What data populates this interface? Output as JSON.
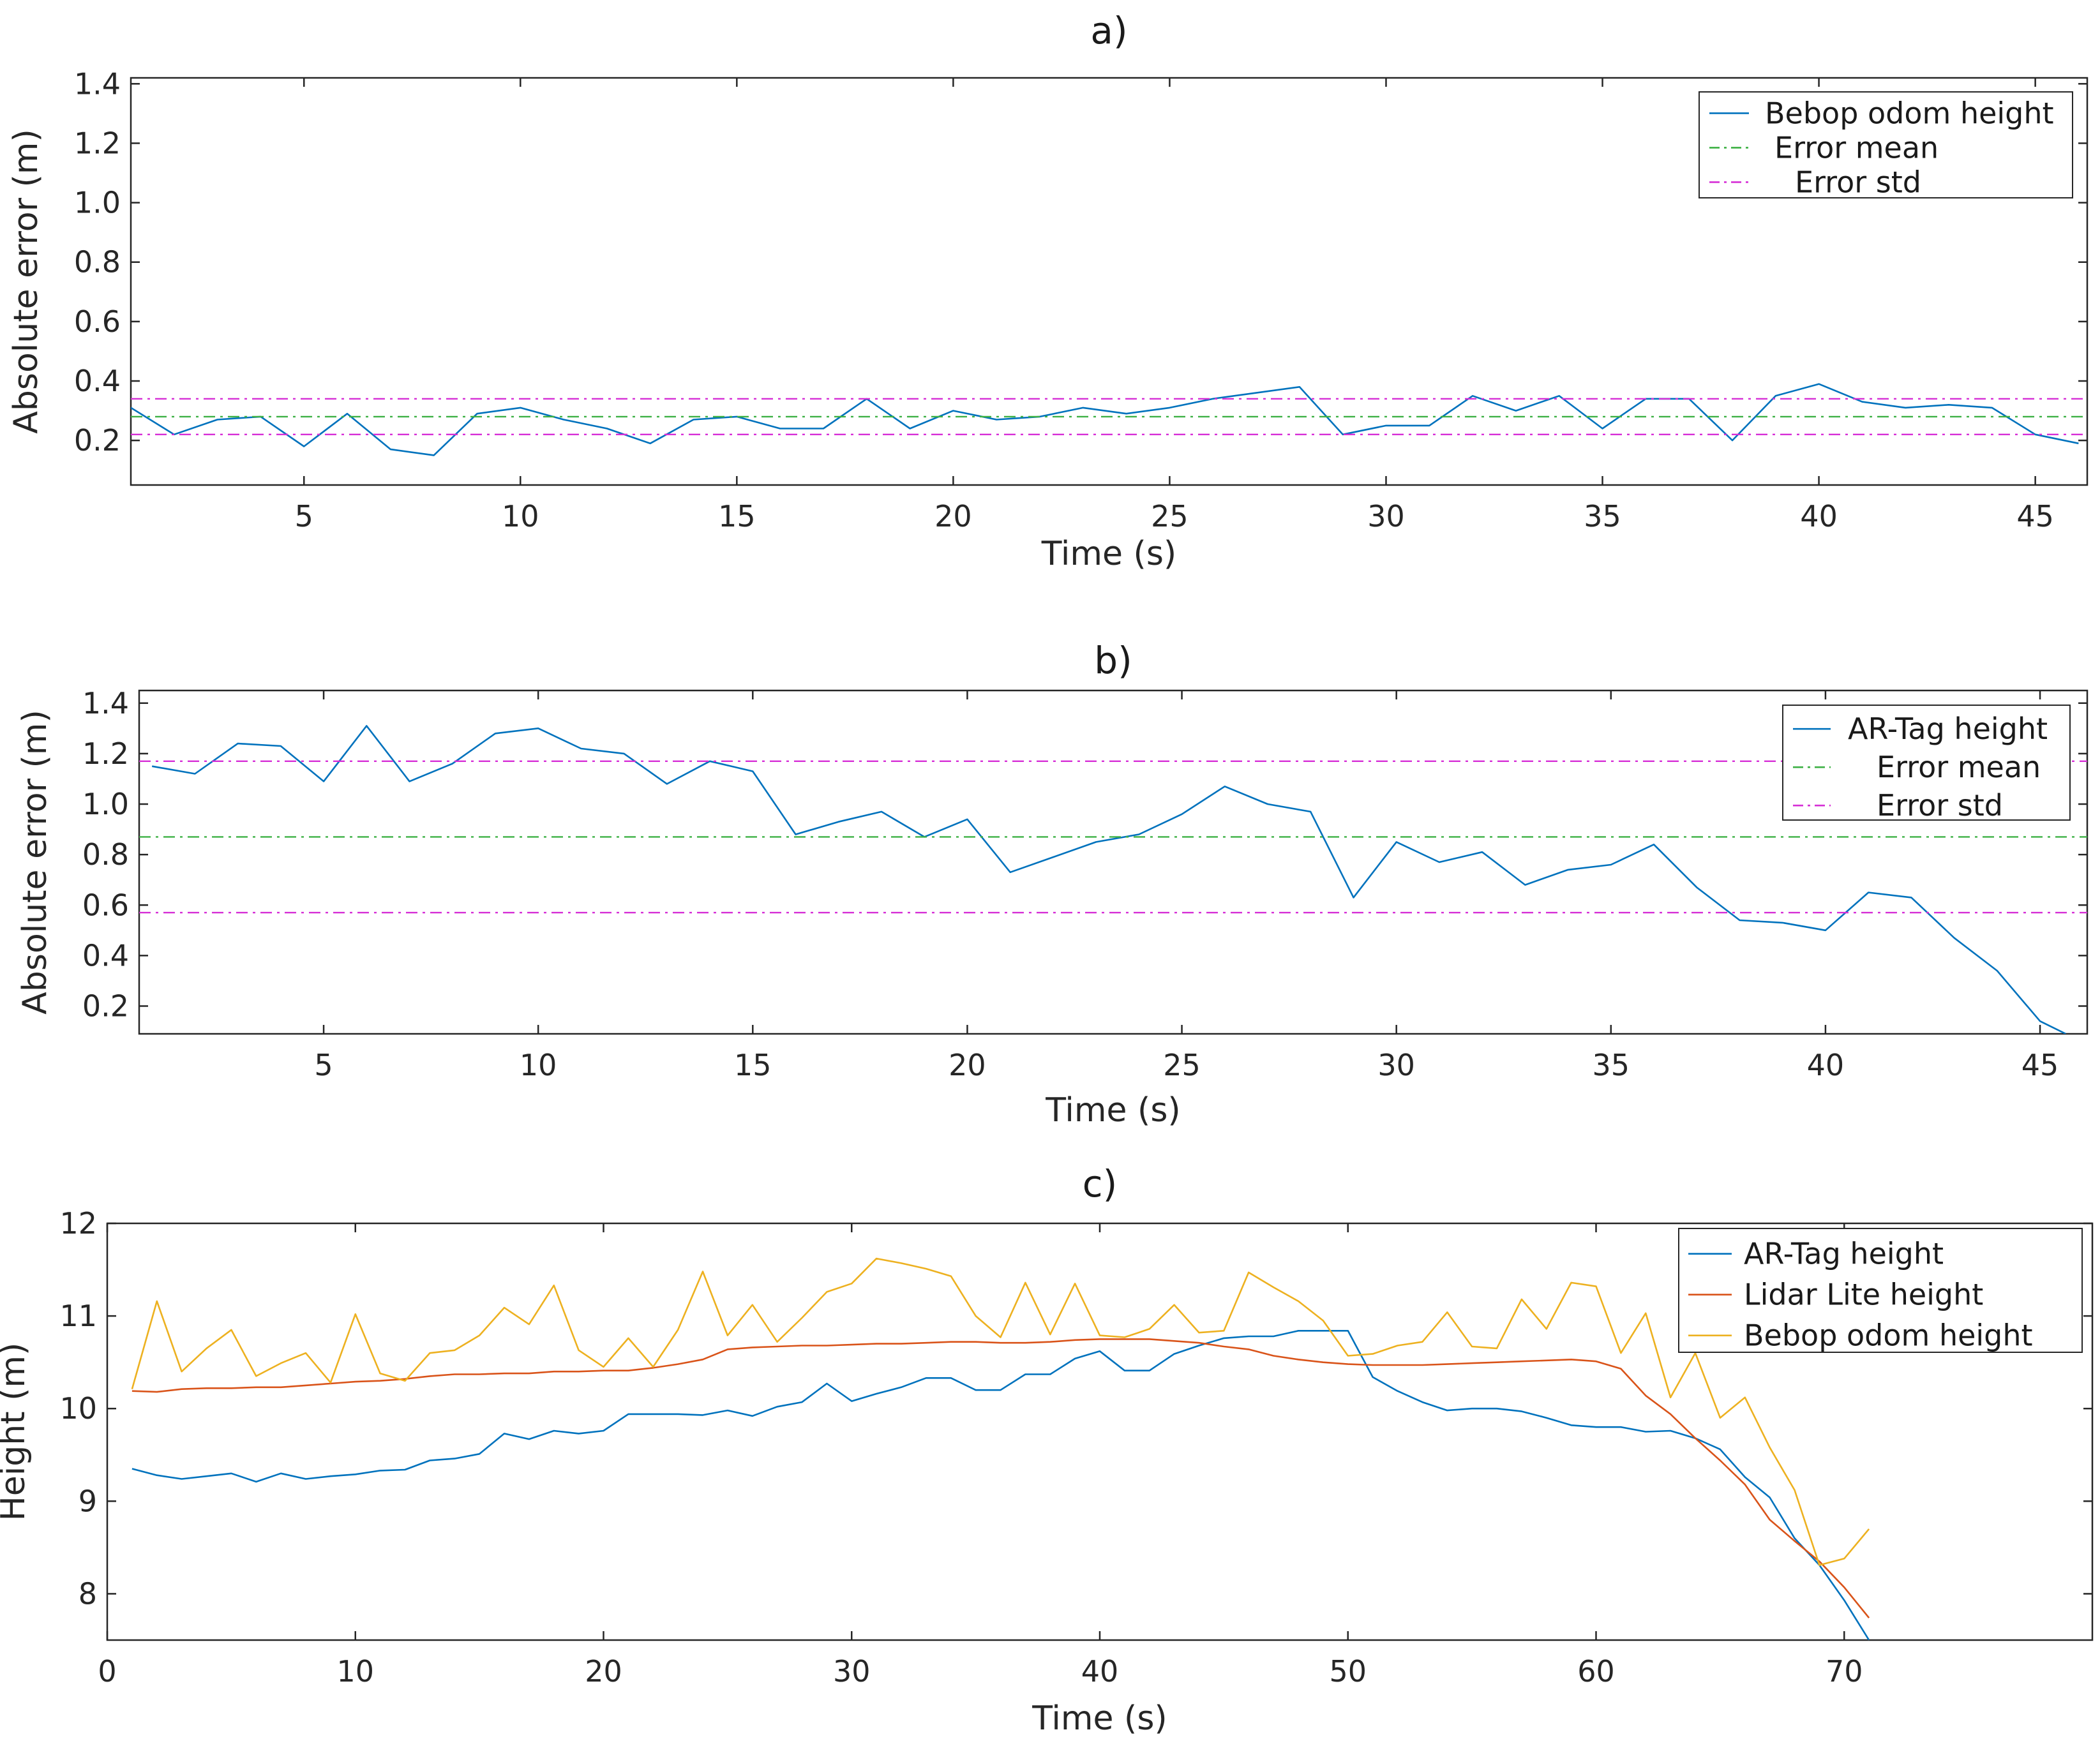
{
  "figure": {
    "name": "three-panel height error figure"
  },
  "colors": {
    "blue": "#0072BD",
    "orange": "#D95319",
    "yellow": "#EDB120",
    "green": "#3cb043",
    "magenta": "#d62fd6",
    "axis": "#262626"
  },
  "chart_data": [
    {
      "id": "a",
      "type": "line",
      "title": "a)",
      "xlabel": "Time (s)",
      "ylabel": "Absolute error (m)",
      "xlim": [
        1,
        46.2
      ],
      "ylim": [
        0.05,
        1.42
      ],
      "xticks": [
        5,
        10,
        15,
        20,
        25,
        30,
        35,
        40,
        45
      ],
      "yticks": [
        0.2,
        0.4,
        0.6,
        0.8,
        1.0,
        1.2,
        1.4
      ],
      "ytick_labels": [
        "0.2",
        "0.4",
        "0.6",
        "0.8",
        "1.0",
        "1.2",
        "1.4"
      ],
      "legend_position": "top-right",
      "series": [
        {
          "name": "Bebop odom height",
          "color": "blue",
          "style": "solid",
          "x": [
            1,
            2,
            3,
            4,
            5,
            6,
            7,
            8,
            9,
            10,
            11,
            12,
            13,
            14,
            15,
            16,
            17,
            18,
            19,
            20,
            21,
            22,
            23,
            24,
            25,
            26,
            27,
            28,
            29,
            30,
            31,
            32,
            33,
            34,
            35,
            36,
            37,
            38,
            39,
            40,
            41,
            42,
            43,
            44,
            45,
            46
          ],
          "y": [
            0.31,
            0.22,
            0.27,
            0.28,
            0.18,
            0.29,
            0.17,
            0.15,
            0.29,
            0.31,
            0.27,
            0.24,
            0.19,
            0.27,
            0.28,
            0.24,
            0.24,
            0.34,
            0.24,
            0.3,
            0.27,
            0.28,
            0.31,
            0.29,
            0.31,
            0.34,
            0.36,
            0.38,
            0.22,
            0.25,
            0.25,
            0.35,
            0.3,
            0.35,
            0.24,
            0.34,
            0.34,
            0.2,
            0.35,
            0.39,
            0.33,
            0.31,
            0.32,
            0.31,
            0.22,
            0.19
          ]
        },
        {
          "name": "Error mean",
          "color": "green",
          "style": "dashdot",
          "x": [
            1,
            46.2
          ],
          "y": [
            0.28,
            0.28
          ]
        },
        {
          "name": "Error std",
          "color": "magenta",
          "style": "dashdot",
          "x": [
            1,
            46.2
          ],
          "y": [
            0.34,
            0.34
          ]
        },
        {
          "name": "",
          "color": "magenta",
          "style": "dashdot",
          "x": [
            1,
            46.2
          ],
          "y": [
            0.22,
            0.22
          ]
        }
      ]
    },
    {
      "id": "b",
      "type": "line",
      "title": "b)",
      "xlabel": "Time (s)",
      "ylabel": "Absolute error (m)",
      "xlim": [
        0.7,
        46.1
      ],
      "ylim": [
        0.09,
        1.45
      ],
      "xticks": [
        5,
        10,
        15,
        20,
        25,
        30,
        35,
        40,
        45
      ],
      "yticks": [
        0.2,
        0.4,
        0.6,
        0.8,
        1.0,
        1.2,
        1.4
      ],
      "ytick_labels": [
        "0.2",
        "0.4",
        "0.6",
        "0.8",
        "1.0",
        "1.2",
        "1.4"
      ],
      "legend_position": "top-right",
      "series": [
        {
          "name": "AR-Tag height",
          "color": "blue",
          "style": "solid",
          "x": [
            1,
            2,
            3,
            4,
            5,
            6,
            7,
            8,
            9,
            10,
            11,
            12,
            13,
            14,
            15,
            16,
            17,
            18,
            19,
            20,
            21,
            22,
            23,
            24,
            25,
            26,
            27,
            28,
            29,
            30,
            31,
            32,
            33,
            34,
            35,
            36,
            37,
            38,
            39,
            40,
            41,
            42,
            43,
            44,
            45,
            45.6
          ],
          "y": [
            1.15,
            1.12,
            1.24,
            1.23,
            1.09,
            1.31,
            1.09,
            1.16,
            1.28,
            1.3,
            1.22,
            1.2,
            1.08,
            1.17,
            1.13,
            0.88,
            0.93,
            0.97,
            0.87,
            0.94,
            0.73,
            0.79,
            0.85,
            0.88,
            0.96,
            1.07,
            1.0,
            0.97,
            0.63,
            0.85,
            0.77,
            0.81,
            0.68,
            0.74,
            0.76,
            0.84,
            0.67,
            0.54,
            0.53,
            0.5,
            0.65,
            0.63,
            0.47,
            0.34,
            0.14,
            0.09
          ]
        },
        {
          "name": "Error mean",
          "color": "green",
          "style": "dashdot",
          "x": [
            0.7,
            46.1
          ],
          "y": [
            0.87,
            0.87
          ]
        },
        {
          "name": "Error std",
          "color": "magenta",
          "style": "dashdot",
          "x": [
            0.7,
            46.1
          ],
          "y": [
            1.17,
            1.17
          ]
        },
        {
          "name": "",
          "color": "magenta",
          "style": "dashdot",
          "x": [
            0.7,
            46.1
          ],
          "y": [
            0.57,
            0.57
          ]
        }
      ]
    },
    {
      "id": "c",
      "type": "line",
      "title": "c)",
      "xlabel": "Time (s)",
      "ylabel": "Height (m)",
      "xlim": [
        0,
        80
      ],
      "ylim": [
        7.5,
        12
      ],
      "xticks": [
        0,
        10,
        20,
        30,
        40,
        50,
        60,
        70
      ],
      "yticks": [
        8,
        9,
        10,
        11,
        12
      ],
      "ytick_labels": [
        "8",
        "9",
        "10",
        "11",
        "12"
      ],
      "legend_position": "top-right",
      "series": [
        {
          "name": "AR-Tag height",
          "color": "blue",
          "style": "solid",
          "x": [
            1,
            2,
            3,
            4,
            5,
            6,
            7,
            8,
            9,
            10,
            11,
            12,
            13,
            14,
            15,
            16,
            17,
            18,
            19,
            20,
            21,
            22,
            23,
            24,
            25,
            26,
            27,
            28,
            29,
            30,
            31,
            32,
            33,
            34,
            35,
            36,
            37,
            38,
            39,
            40,
            41,
            42,
            43,
            44,
            45,
            46,
            47,
            48,
            49,
            50,
            51,
            52,
            53,
            54,
            55,
            56,
            57,
            58,
            59,
            60,
            61,
            62,
            63,
            64,
            65,
            66,
            67,
            68,
            69,
            70,
            71
          ],
          "y": [
            9.35,
            9.28,
            9.24,
            9.27,
            9.3,
            9.21,
            9.3,
            9.24,
            9.27,
            9.29,
            9.33,
            9.34,
            9.44,
            9.46,
            9.51,
            9.73,
            9.67,
            9.76,
            9.73,
            9.76,
            9.94,
            9.94,
            9.94,
            9.93,
            9.98,
            9.92,
            10.02,
            10.07,
            10.27,
            10.08,
            10.16,
            10.23,
            10.33,
            10.33,
            10.2,
            10.2,
            10.37,
            10.37,
            10.54,
            10.62,
            10.41,
            10.41,
            10.59,
            10.68,
            10.76,
            10.78,
            10.78,
            10.84,
            10.84,
            10.84,
            10.34,
            10.19,
            10.07,
            9.98,
            10.0,
            10.0,
            9.97,
            9.9,
            9.82,
            9.8,
            9.8,
            9.75,
            9.76,
            9.68,
            9.56,
            9.26,
            9.04,
            8.6,
            8.31,
            7.93,
            7.5
          ]
        },
        {
          "name": "Lidar Lite height",
          "color": "orange",
          "style": "solid",
          "x": [
            1,
            2,
            3,
            4,
            5,
            6,
            7,
            8,
            9,
            10,
            11,
            12,
            13,
            14,
            15,
            16,
            17,
            18,
            19,
            20,
            21,
            22,
            23,
            24,
            25,
            26,
            27,
            28,
            29,
            30,
            31,
            32,
            33,
            34,
            35,
            36,
            37,
            38,
            39,
            40,
            41,
            42,
            43,
            44,
            45,
            46,
            47,
            48,
            49,
            50,
            51,
            52,
            53,
            54,
            55,
            56,
            57,
            58,
            59,
            60,
            61,
            62,
            63,
            64,
            65,
            66,
            67,
            68,
            69,
            70,
            71
          ],
          "y": [
            10.19,
            10.18,
            10.21,
            10.22,
            10.22,
            10.23,
            10.23,
            10.25,
            10.27,
            10.29,
            10.3,
            10.32,
            10.35,
            10.37,
            10.37,
            10.38,
            10.38,
            10.4,
            10.4,
            10.41,
            10.41,
            10.44,
            10.48,
            10.53,
            10.64,
            10.66,
            10.67,
            10.68,
            10.68,
            10.69,
            10.7,
            10.7,
            10.71,
            10.72,
            10.72,
            10.71,
            10.71,
            10.72,
            10.74,
            10.75,
            10.75,
            10.75,
            10.73,
            10.71,
            10.67,
            10.64,
            10.57,
            10.53,
            10.5,
            10.48,
            10.47,
            10.47,
            10.47,
            10.48,
            10.49,
            10.5,
            10.51,
            10.52,
            10.53,
            10.51,
            10.43,
            10.14,
            9.94,
            9.68,
            9.44,
            9.18,
            8.8,
            8.57,
            8.35,
            8.07,
            7.74
          ]
        },
        {
          "name": "Bebop odom height",
          "color": "yellow",
          "style": "solid",
          "x": [
            1,
            2,
            3,
            4,
            5,
            6,
            7,
            8,
            9,
            10,
            11,
            12,
            13,
            14,
            15,
            16,
            17,
            18,
            19,
            20,
            21,
            22,
            23,
            24,
            25,
            26,
            27,
            28,
            29,
            30,
            31,
            32,
            33,
            34,
            35,
            36,
            37,
            38,
            39,
            40,
            41,
            42,
            43,
            44,
            45,
            46,
            47,
            48,
            49,
            50,
            51,
            52,
            53,
            54,
            55,
            56,
            57,
            58,
            59,
            60,
            61,
            62,
            63,
            64,
            65,
            66,
            67,
            68,
            69,
            70,
            71
          ],
          "y": [
            10.21,
            11.16,
            10.4,
            10.65,
            10.85,
            10.35,
            10.49,
            10.6,
            10.28,
            11.02,
            10.38,
            10.3,
            10.6,
            10.63,
            10.79,
            11.09,
            10.91,
            11.33,
            10.63,
            10.45,
            10.76,
            10.45,
            10.85,
            11.48,
            10.79,
            11.12,
            10.72,
            10.98,
            11.26,
            11.35,
            11.62,
            11.57,
            11.51,
            11.43,
            11.0,
            10.77,
            11.36,
            10.8,
            11.35,
            10.79,
            10.77,
            10.86,
            11.12,
            10.82,
            10.84,
            11.47,
            11.31,
            11.16,
            10.95,
            10.57,
            10.59,
            10.68,
            10.72,
            11.04,
            10.67,
            10.65,
            11.18,
            10.86,
            11.36,
            11.32,
            10.6,
            11.03,
            10.12,
            10.6,
            9.9,
            10.12,
            9.58,
            9.12,
            8.31,
            8.38,
            8.7
          ]
        }
      ]
    }
  ]
}
